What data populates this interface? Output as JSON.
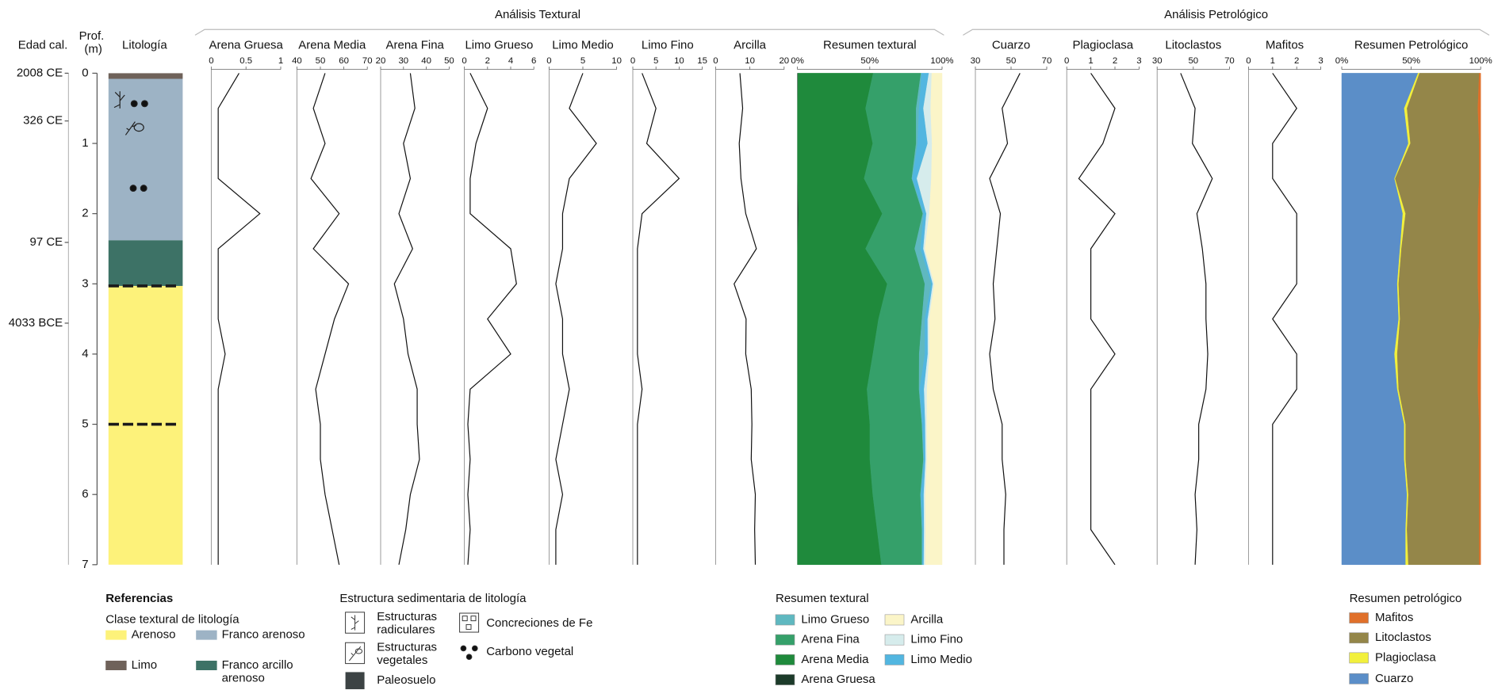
{
  "header": {
    "age_label": "Edad cal.",
    "depth_label": "Prof. (m)",
    "lithology_label": "Litología"
  },
  "depth": {
    "values": [
      0,
      0.5,
      1,
      1.5,
      2,
      2.5,
      3,
      3.5,
      4,
      4.5,
      5,
      5.5,
      6,
      6.5,
      7
    ],
    "ylim": [
      0,
      7
    ],
    "yticks": [
      0,
      1,
      2,
      3,
      4,
      5,
      6,
      7
    ],
    "ages": [
      {
        "value": 0,
        "label": "2008 CE"
      },
      {
        "value": 0.68,
        "label": "326 CE"
      },
      {
        "value": 2.41,
        "label": "97 CE"
      },
      {
        "value": 3.56,
        "label": "4033 BCE"
      }
    ]
  },
  "lithology": {
    "layers": [
      {
        "top": 0,
        "bottom": 0.08,
        "class": "Limo"
      },
      {
        "top": 0.08,
        "bottom": 2.38,
        "class": "Franco arenoso"
      },
      {
        "top": 2.38,
        "bottom": 3.03,
        "class": "Franco arcillo arenoso"
      },
      {
        "top": 3.03,
        "bottom": 7,
        "class": "Arenoso"
      }
    ],
    "paleosols": [
      3.03,
      5.0
    ]
  },
  "legend": {
    "title": "Referencias",
    "subtitle": "Clase textural de litología",
    "classes": [
      {
        "name": "Arenoso",
        "color": "#fdf27a"
      },
      {
        "name": "Franco arenoso",
        "color": "#9db3c5"
      },
      {
        "name": "Limo",
        "color": "#6f625a"
      },
      {
        "name": "Franco arcillo arenoso",
        "color": "#3d7266"
      }
    ],
    "structures_title": "Estructura sedimentaria de litología",
    "structures": [
      "Estructuras radiculares",
      "Estructuras vegetales",
      "Paleosuelo",
      "Concreciones de Fe",
      "Carbono vegetal"
    ]
  },
  "chart_data": [
    {
      "type": "profile",
      "group_title": "Análisis Textural",
      "summary_title": "Resumen textural",
      "legend_title": "Resumen textural",
      "summary_xlim": [
        0,
        100
      ],
      "summary_xticks": [
        {
          "value": 0,
          "label": "0%"
        },
        {
          "value": 50,
          "label": "50%"
        },
        {
          "value": 100,
          "label": "100%"
        }
      ],
      "series": [
        {
          "name": "Arena Gruesa",
          "color": "#1c3b2a",
          "xlim": [
            0,
            1
          ],
          "xticks": [
            0,
            0.5,
            1
          ],
          "values": [
            0.4,
            0.1,
            0.1,
            0.1,
            0.7,
            0.1,
            0.1,
            0.1,
            0.2,
            0.1,
            0.1,
            0.1,
            0.1,
            0.1,
            0.1
          ]
        },
        {
          "name": "Arena Media",
          "color": "#1f8a3c",
          "xlim": [
            40,
            70
          ],
          "xticks": [
            40,
            50,
            60,
            70
          ],
          "values": [
            52,
            47,
            52,
            46,
            58,
            47,
            62,
            56,
            52,
            48,
            50,
            50,
            52,
            55,
            58
          ]
        },
        {
          "name": "Arena Fina",
          "color": "#35a06a",
          "xlim": [
            20,
            50
          ],
          "xticks": [
            20,
            30,
            40,
            50
          ],
          "values": [
            33,
            35,
            30,
            33,
            28,
            34,
            26,
            30,
            32,
            36,
            36,
            37,
            33,
            31,
            28
          ]
        },
        {
          "name": "Limo Grueso",
          "color": "#5fb8c0",
          "xlim": [
            0,
            6
          ],
          "xticks": [
            0,
            2,
            4,
            6
          ],
          "values": [
            0.5,
            2,
            1,
            0.5,
            0.5,
            4,
            4.5,
            2,
            4,
            0.5,
            0.3,
            0.5,
            0.3,
            0.5,
            0.3
          ]
        },
        {
          "name": "Limo Medio",
          "color": "#52b6e0",
          "xlim": [
            0,
            10
          ],
          "xticks": [
            0,
            5,
            10
          ],
          "values": [
            5,
            3,
            7,
            3,
            2,
            2,
            1,
            2,
            2,
            3,
            2,
            1,
            2,
            1,
            1
          ]
        },
        {
          "name": "Limo Fino",
          "color": "#d6ecec",
          "xlim": [
            0,
            15
          ],
          "xticks": [
            0,
            5,
            10,
            15
          ],
          "values": [
            2,
            5,
            3,
            10,
            2,
            1,
            1,
            1,
            1,
            2,
            1,
            1,
            1,
            1,
            1
          ]
        },
        {
          "name": "Arcilla",
          "color": "#fbf5c8",
          "xlim": [
            0,
            20
          ],
          "xticks": [
            0,
            10,
            20
          ],
          "values": [
            7.1,
            7.9,
            6.9,
            7.4,
            8.8,
            11.9,
            5.4,
            8.9,
            8.8,
            10.4,
            10.6,
            10.4,
            11.6,
            11.4,
            11.6
          ]
        }
      ]
    },
    {
      "type": "profile",
      "group_title": "Análisis Petrológico",
      "summary_title": "Resumen Petrológico",
      "legend_title": "Resumen petrológico",
      "summary_xlim": [
        0,
        100
      ],
      "summary_xticks": [
        {
          "value": 0,
          "label": "0%"
        },
        {
          "value": 50,
          "label": "50%"
        },
        {
          "value": 100,
          "label": "100%"
        }
      ],
      "series": [
        {
          "name": "Cuarzo",
          "color": "#5b8ec8",
          "xlim": [
            30,
            70
          ],
          "xticks": [
            30,
            50,
            70
          ],
          "values": [
            55,
            45,
            48,
            38,
            44,
            42,
            40,
            41,
            38,
            40,
            45,
            45,
            47,
            46,
            46
          ]
        },
        {
          "name": "Plagioclasa",
          "color": "#f2f03c",
          "xlim": [
            0,
            3
          ],
          "xticks": [
            0,
            1,
            2,
            3
          ],
          "values": [
            1,
            2,
            1.5,
            0.5,
            2,
            1,
            1,
            1,
            2,
            1,
            1,
            1,
            1,
            1,
            2
          ]
        },
        {
          "name": "Litoclastos",
          "color": "#948649",
          "xlim": [
            30,
            70
          ],
          "xticks": [
            30,
            50,
            70
          ],
          "values": [
            43,
            51,
            49.5,
            60.5,
            52,
            55,
            57,
            57,
            58,
            57,
            53,
            53,
            51,
            52,
            51
          ]
        },
        {
          "name": "Mafitos",
          "color": "#e0702a",
          "xlim": [
            0,
            3
          ],
          "xticks": [
            0,
            1,
            2,
            3
          ],
          "values": [
            1,
            2,
            1,
            1,
            2,
            2,
            2,
            1,
            2,
            2,
            1,
            1,
            1,
            1,
            1
          ]
        }
      ]
    }
  ]
}
